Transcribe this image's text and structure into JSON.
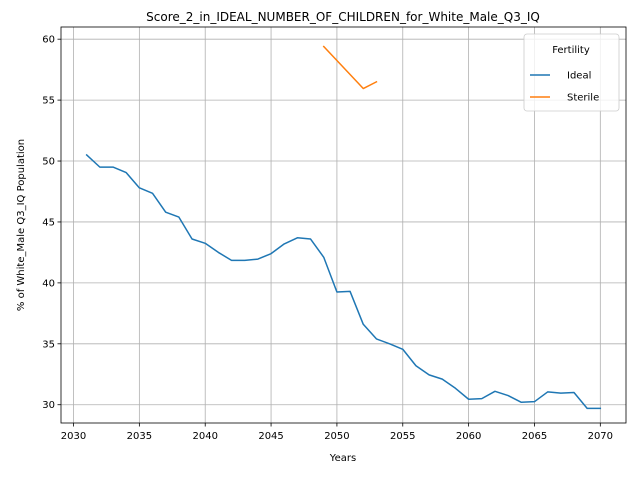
{
  "chart_data": {
    "type": "line",
    "title": "Score_2_in_IDEAL_NUMBER_OF_CHILDREN_for_White_Male_Q3_IQ",
    "xlabel": "Years",
    "ylabel": "% of White_Male Q3_IQ Population",
    "xlim": [
      2029.05,
      2071.95
    ],
    "ylim": [
      28.5,
      61.0
    ],
    "xticks": [
      2030,
      2035,
      2040,
      2045,
      2050,
      2055,
      2060,
      2065,
      2070
    ],
    "yticks": [
      30,
      35,
      40,
      45,
      50,
      55,
      60
    ],
    "grid": true,
    "legend": {
      "title": "Fertility",
      "placement": "top-right"
    },
    "series": [
      {
        "name": "Ideal",
        "color": "#1f77b4",
        "x": [
          2031,
          2032,
          2033,
          2034,
          2035,
          2036,
          2037,
          2038,
          2039,
          2040,
          2041,
          2042,
          2043,
          2044,
          2045,
          2046,
          2047,
          2048,
          2049,
          2050,
          2051,
          2052,
          2053,
          2054,
          2055,
          2056,
          2057,
          2058,
          2059,
          2060,
          2061,
          2062,
          2063,
          2064,
          2065,
          2066,
          2067,
          2068,
          2069,
          2070
        ],
        "y": [
          50.5,
          49.5,
          49.5,
          49.05,
          47.8,
          47.35,
          45.8,
          45.4,
          43.6,
          43.25,
          42.5,
          41.85,
          41.85,
          41.95,
          42.4,
          43.2,
          43.7,
          43.6,
          42.1,
          39.25,
          39.3,
          36.6,
          35.4,
          35.0,
          34.55,
          33.2,
          32.45,
          32.1,
          31.35,
          30.45,
          30.5,
          31.1,
          30.75,
          30.2,
          30.25,
          31.05,
          30.95,
          31.0,
          29.7,
          29.7
        ]
      },
      {
        "name": "Sterile",
        "color": "#ff7f0e",
        "x": [
          2049,
          2050,
          2051,
          2052,
          2053
        ],
        "y": [
          59.4,
          58.25,
          57.1,
          55.95,
          56.5
        ]
      }
    ]
  }
}
